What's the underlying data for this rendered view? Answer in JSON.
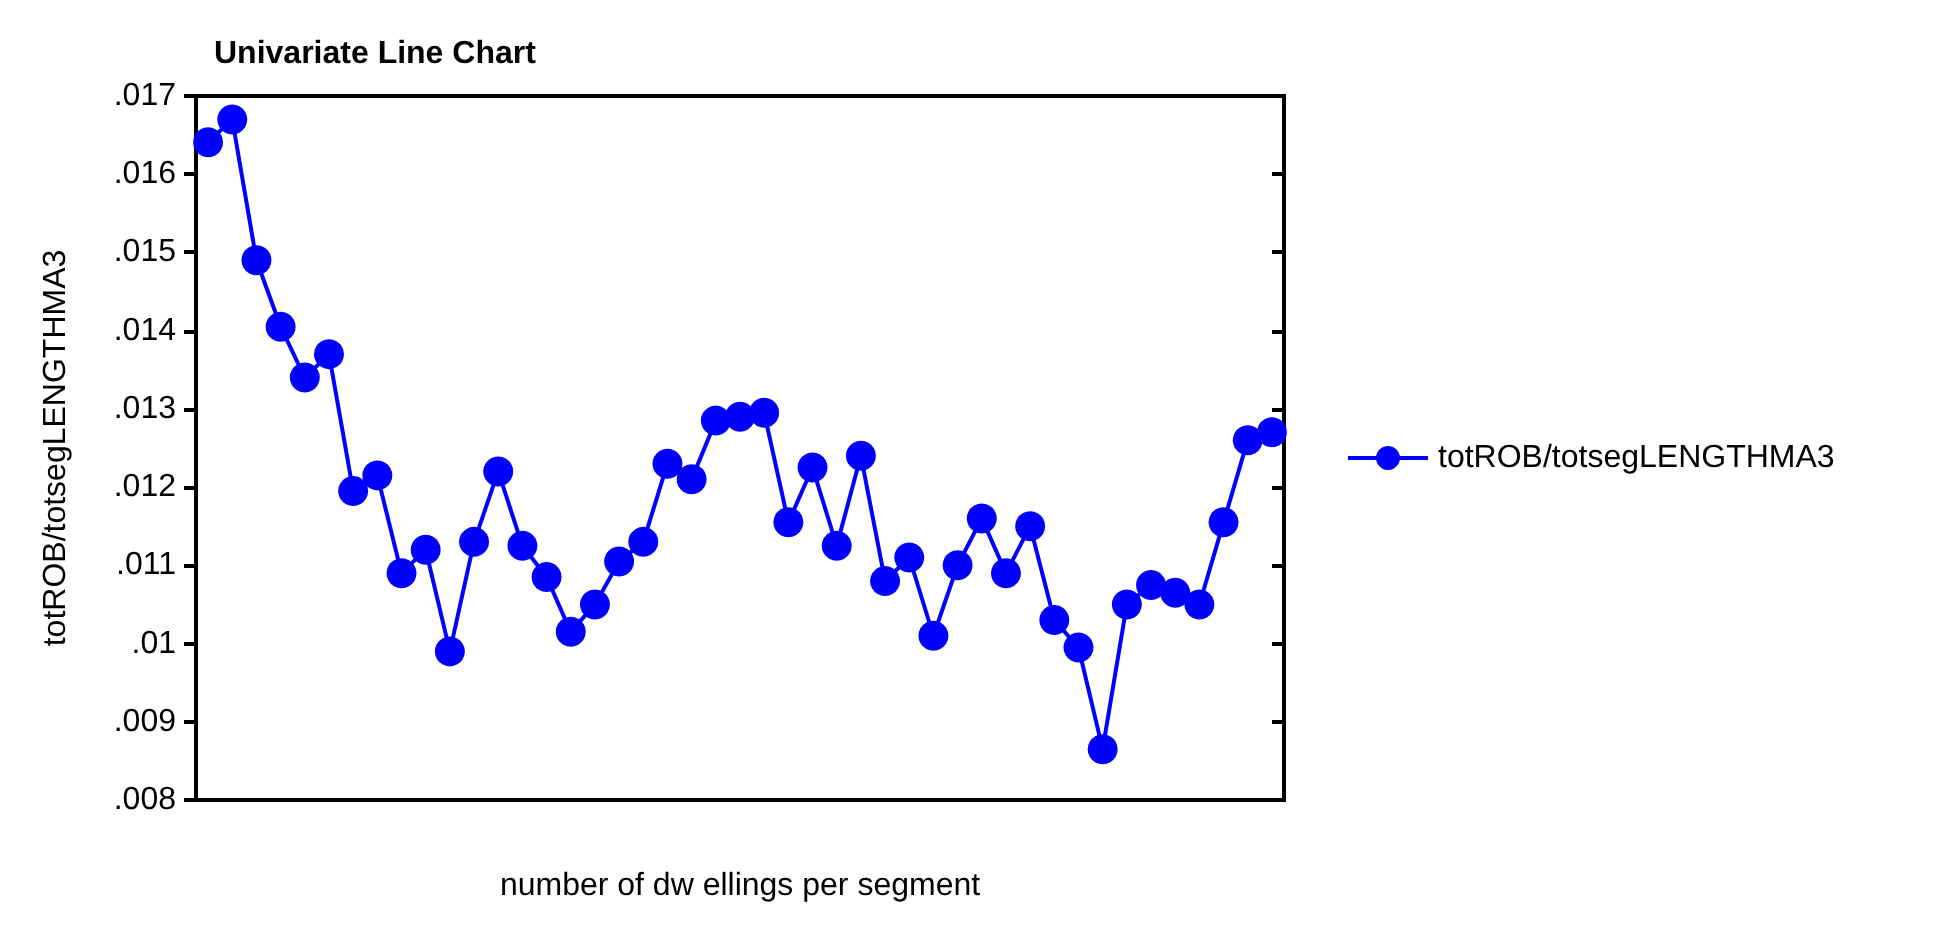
{
  "chart_data": {
    "type": "line",
    "title": "Univariate Line Chart",
    "xlabel": "number of dw ellings per segment",
    "ylabel": "totROB/totsegLENGTHMA3",
    "categories": [
      null,
      null,
      null,
      null,
      null,
      null,
      null,
      null,
      null,
      null,
      null,
      null,
      null,
      null,
      null,
      null,
      null,
      null,
      null,
      null,
      null,
      null,
      null,
      null,
      null,
      null,
      null,
      null,
      null,
      null,
      null,
      null,
      null,
      null,
      null,
      null,
      null,
      null,
      null,
      null,
      null,
      null,
      null,
      null,
      null
    ],
    "series": [
      {
        "name": "totROB/totsegLENGTHMA3",
        "color": "#0000ff",
        "values": [
          0.01641,
          0.0167,
          0.0149,
          0.01405,
          0.0134,
          0.0137,
          0.01195,
          0.01215,
          0.0109,
          0.0112,
          0.0099,
          0.0113,
          0.0122,
          0.01125,
          0.01085,
          0.01015,
          0.0105,
          0.01105,
          0.0113,
          0.0123,
          0.0121,
          0.01285,
          0.0129,
          0.01295,
          0.01155,
          0.01225,
          0.01125,
          0.0124,
          0.0108,
          0.0111,
          0.0101,
          0.011,
          0.0116,
          0.0109,
          0.0115,
          0.0103,
          0.00995,
          0.00865,
          0.0105,
          0.01075,
          0.01065,
          0.0105,
          0.01155,
          0.0126,
          0.0127
        ]
      }
    ],
    "ylim": [
      0.008,
      0.017
    ],
    "yticks": [
      {
        "value": 0.008,
        "label": ".008"
      },
      {
        "value": 0.009,
        "label": ".009"
      },
      {
        "value": 0.01,
        "label": ".01"
      },
      {
        "value": 0.011,
        "label": ".011"
      },
      {
        "value": 0.012,
        "label": ".012"
      },
      {
        "value": 0.013,
        "label": ".013"
      },
      {
        "value": 0.014,
        "label": ".014"
      },
      {
        "value": 0.015,
        "label": ".015"
      },
      {
        "value": 0.016,
        "label": ".016"
      },
      {
        "value": 0.017,
        "label": ".017"
      }
    ],
    "grid": false,
    "legend": "right",
    "marker": "circle",
    "line_style": "solid"
  }
}
